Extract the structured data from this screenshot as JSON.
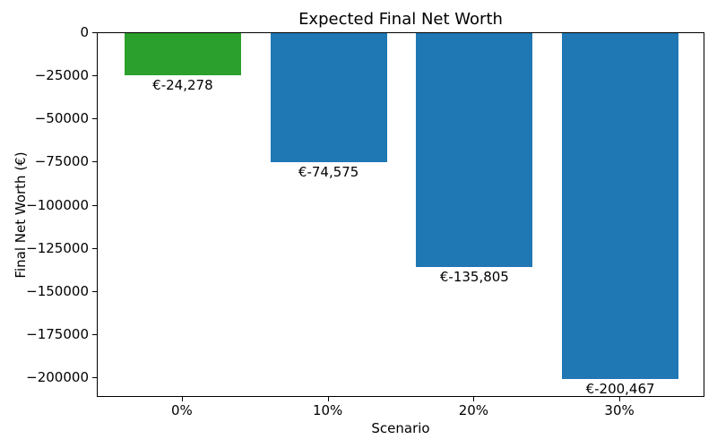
{
  "chart_data": {
    "type": "bar",
    "title": "Expected Final Net Worth",
    "xlabel": "Scenario",
    "ylabel": "Final Net Worth (€)",
    "categories": [
      "0%",
      "10%",
      "20%",
      "30%"
    ],
    "values": [
      -24278,
      -74575,
      -135805,
      -200467
    ],
    "bar_labels": [
      "€-24,278",
      "€-74,575",
      "€-135,805",
      "€-200,467"
    ],
    "bar_colors": [
      "#2ca02c",
      "#1f77b4",
      "#1f77b4",
      "#1f77b4"
    ],
    "yticks": [
      0,
      -25000,
      -50000,
      -75000,
      -100000,
      -125000,
      -150000,
      -175000,
      -200000
    ],
    "ytick_labels": [
      "0",
      "−25000",
      "−50000",
      "−75000",
      "−100000",
      "−125000",
      "−150000",
      "−175000",
      "−200000"
    ],
    "ylim": [
      -211400,
      0
    ],
    "grid": false,
    "legend": false,
    "background": "#ffffff",
    "spine_color": "#000000"
  }
}
